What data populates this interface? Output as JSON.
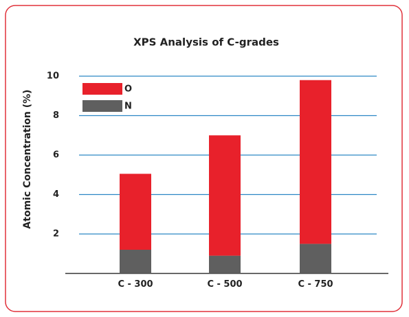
{
  "chart_data": {
    "type": "stacked_bar",
    "title": "XPS Analysis of C-grades",
    "y_label": "Atomic Concentration (%)",
    "categories": [
      "C - 300",
      "C - 500",
      "C - 750"
    ],
    "series": [
      {
        "name": "N",
        "color": "#5f5f5f",
        "values": [
          1.2,
          0.9,
          1.5
        ]
      },
      {
        "name": "O",
        "color": "#e8212b",
        "values": [
          3.85,
          6.1,
          8.3
        ]
      }
    ],
    "ylim": [
      0,
      10
    ],
    "yticks": [
      2,
      4,
      6,
      8,
      10
    ],
    "grid": true,
    "legend": "upper left"
  }
}
